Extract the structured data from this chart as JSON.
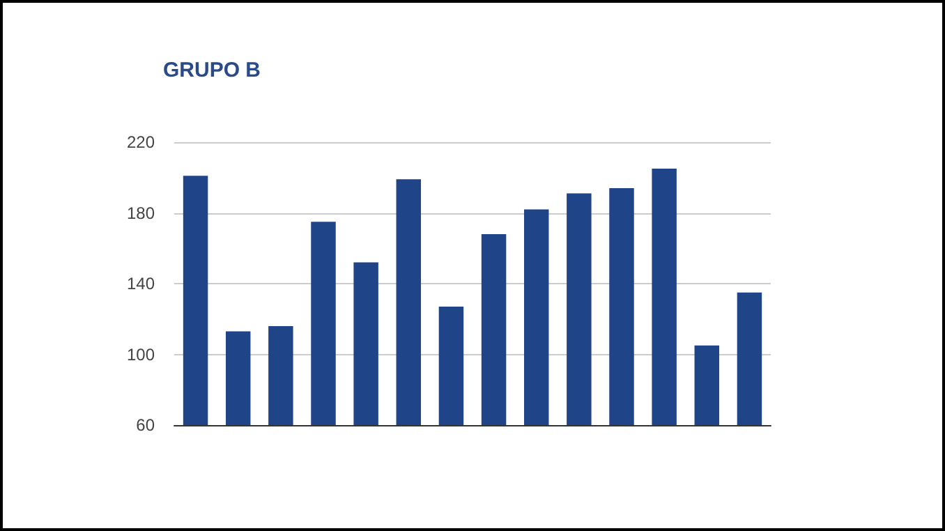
{
  "chart_data": {
    "type": "bar",
    "title": "GRUPO B",
    "categories": [
      null,
      null,
      null,
      null,
      null,
      null,
      null,
      null,
      null,
      null,
      null,
      null,
      null,
      null
    ],
    "values": [
      201,
      113,
      116,
      175,
      152,
      199,
      127,
      168,
      182,
      191,
      194,
      205,
      105,
      135
    ],
    "color": "#1f4488",
    "ylim": [
      60,
      220
    ],
    "yticks": [
      60,
      100,
      140,
      180,
      220
    ],
    "grid": "y"
  }
}
